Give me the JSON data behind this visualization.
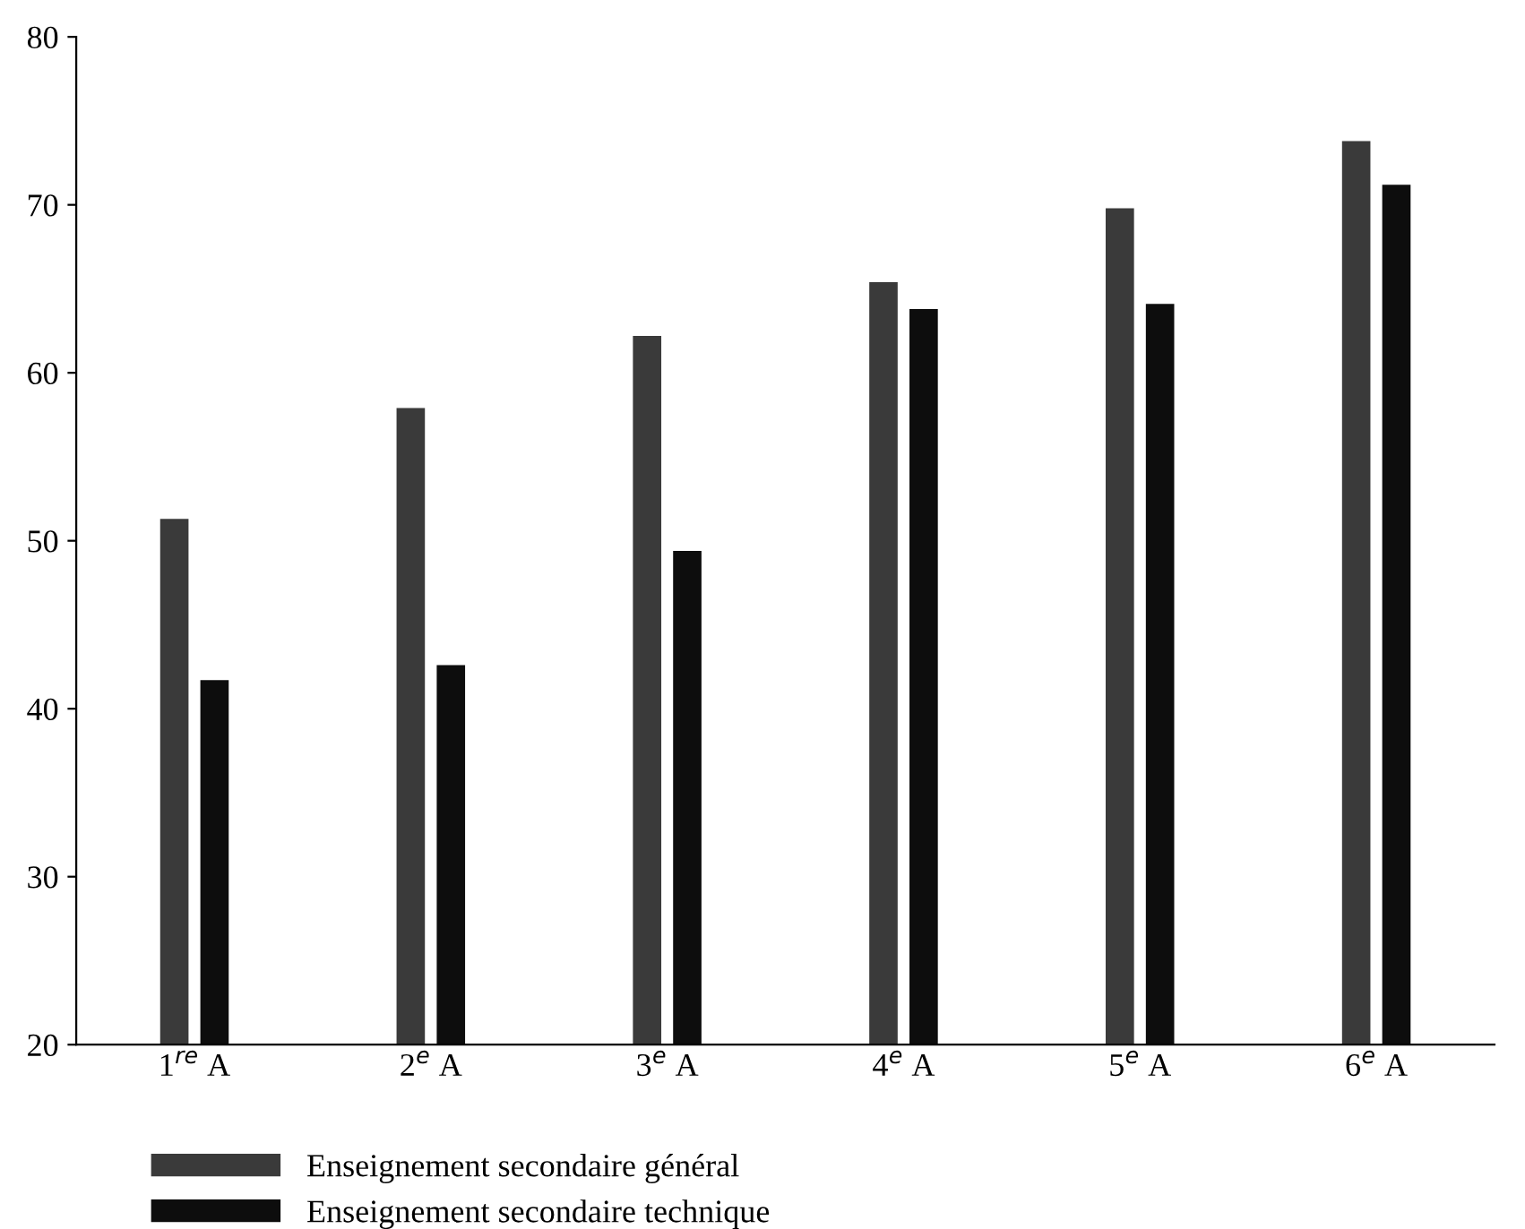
{
  "chart_data": {
    "type": "bar",
    "categories": [
      "1$^{re}$ A",
      "2$^{e}$ A",
      "3$^{e}$ A",
      "4$^{e}$ A",
      "5$^{e}$ A",
      "6$^{e}$ A"
    ],
    "series": [
      {
        "name": "Enseignement secondaire général",
        "color": "#3a3a3a",
        "values": [
          51.3,
          57.9,
          62.2,
          65.4,
          69.8,
          73.8
        ]
      },
      {
        "name": "Enseignement secondaire technique",
        "color": "#0d0d0d",
        "values": [
          41.7,
          42.6,
          49.4,
          63.8,
          64.1,
          71.2
        ]
      }
    ],
    "ylim": [
      20,
      80
    ],
    "yticks": [
      20,
      30,
      40,
      50,
      60,
      70,
      80
    ],
    "grid": false,
    "legend": "bottom left"
  }
}
